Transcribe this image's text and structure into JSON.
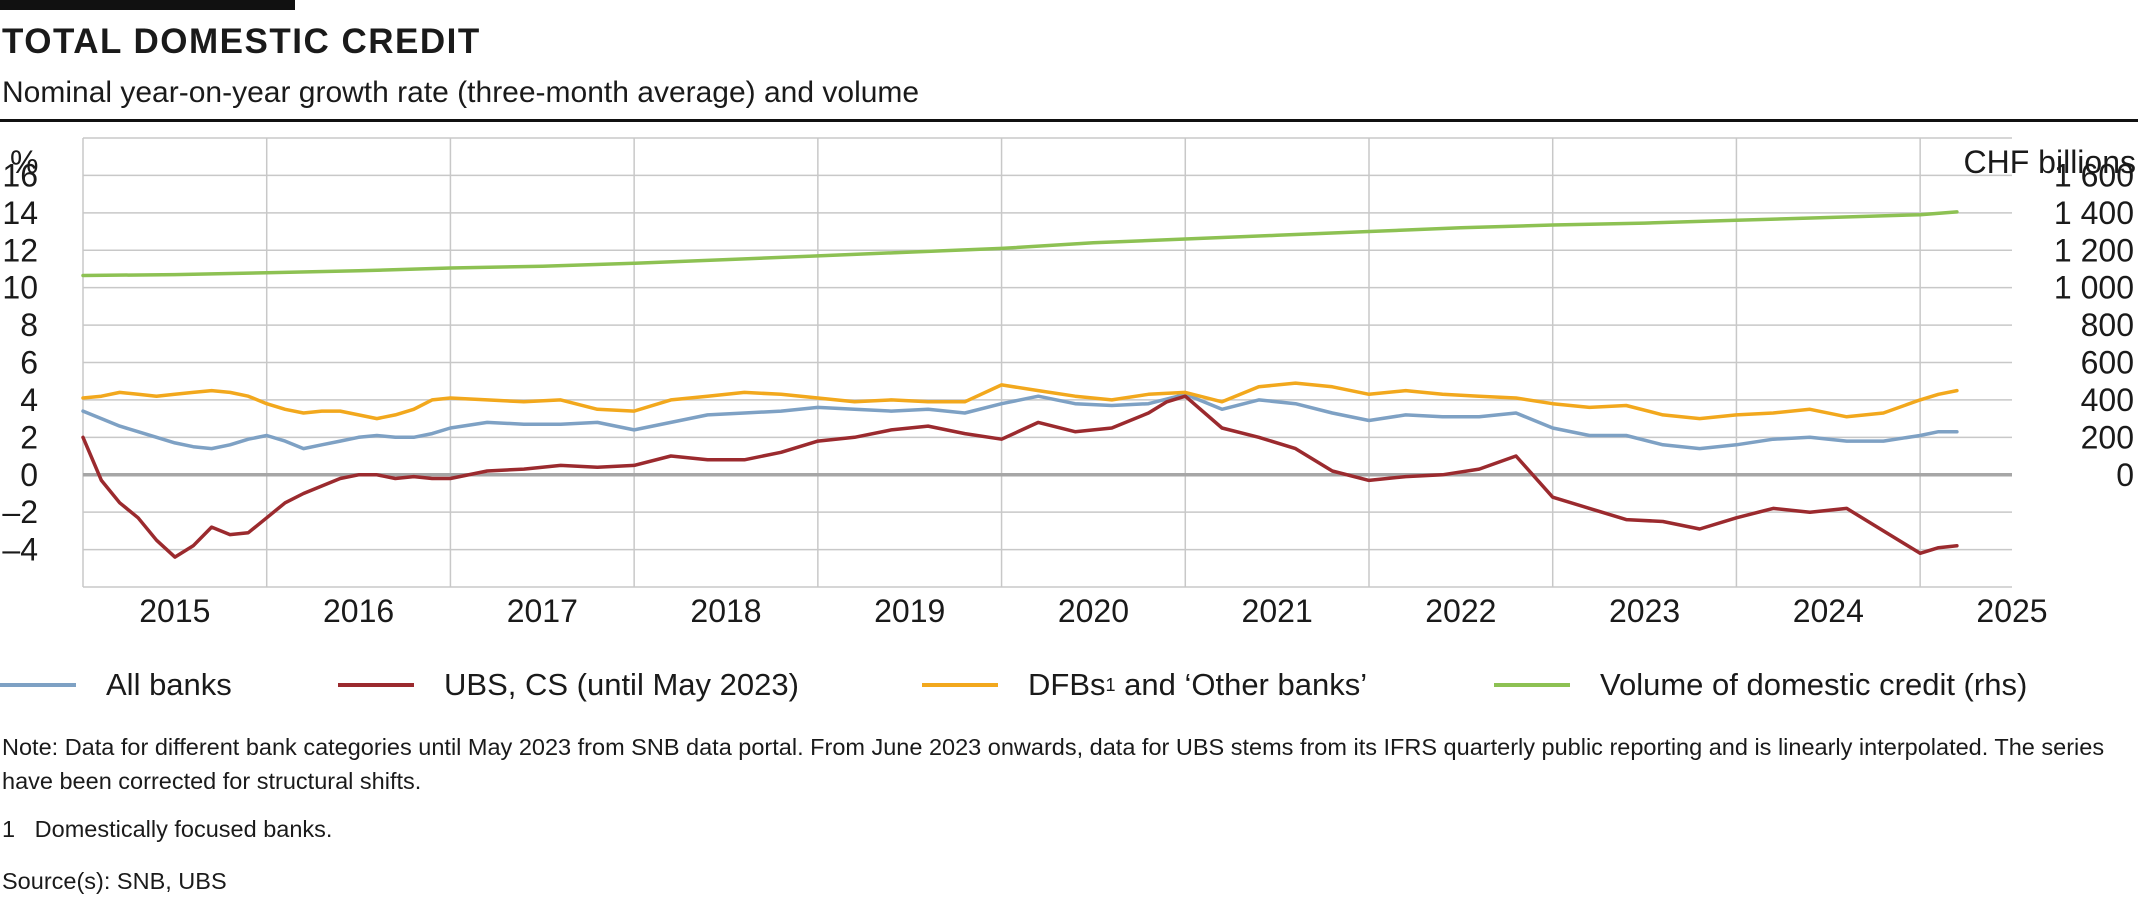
{
  "header": {
    "title": "TOTAL DOMESTIC CREDIT",
    "subtitle": "Nominal year-on-year growth rate (three-month average) and volume"
  },
  "chart_data": {
    "type": "line",
    "left_axis_label": "%",
    "right_axis_label": "CHF billions",
    "left_ticks": [
      "16",
      "14",
      "12",
      "10",
      "8",
      "6",
      "4",
      "2",
      "0",
      "–2",
      "–4"
    ],
    "right_ticks": [
      "1 600",
      "1 400",
      "1 200",
      "1 000",
      "800",
      "600",
      "400",
      "200",
      "0"
    ],
    "ylim_left": [
      -6,
      18
    ],
    "ylim_right": [
      -600,
      1800
    ],
    "x_ticks": [
      "2015",
      "2016",
      "2017",
      "2018",
      "2019",
      "2020",
      "2021",
      "2022",
      "2023",
      "2024",
      "2025"
    ],
    "xlim": [
      2015.0,
      2025.5
    ],
    "grid": true,
    "series": [
      {
        "name": "All banks",
        "color": "#7ea1c4",
        "axis": "left",
        "x": [
          2015.0,
          2015.1,
          2015.2,
          2015.3,
          2015.4,
          2015.5,
          2015.6,
          2015.7,
          2015.8,
          2015.9,
          2016.0,
          2016.1,
          2016.2,
          2016.3,
          2016.4,
          2016.5,
          2016.6,
          2016.7,
          2016.8,
          2016.9,
          2017.0,
          2017.2,
          2017.4,
          2017.6,
          2017.8,
          2018.0,
          2018.2,
          2018.4,
          2018.6,
          2018.8,
          2019.0,
          2019.2,
          2019.4,
          2019.6,
          2019.8,
          2020.0,
          2020.2,
          2020.4,
          2020.6,
          2020.8,
          2021.0,
          2021.2,
          2021.4,
          2021.6,
          2021.8,
          2022.0,
          2022.2,
          2022.4,
          2022.6,
          2022.8,
          2023.0,
          2023.2,
          2023.4,
          2023.6,
          2023.8,
          2024.0,
          2024.2,
          2024.4,
          2024.6,
          2024.8,
          2025.0,
          2025.1,
          2025.2
        ],
        "y": [
          3.4,
          3.0,
          2.6,
          2.3,
          2.0,
          1.7,
          1.5,
          1.4,
          1.6,
          1.9,
          2.1,
          1.8,
          1.4,
          1.6,
          1.8,
          2.0,
          2.1,
          2.0,
          2.0,
          2.2,
          2.5,
          2.8,
          2.7,
          2.7,
          2.8,
          2.4,
          2.8,
          3.2,
          3.3,
          3.4,
          3.6,
          3.5,
          3.4,
          3.5,
          3.3,
          3.8,
          4.2,
          3.8,
          3.7,
          3.8,
          4.3,
          3.5,
          4.0,
          3.8,
          3.3,
          2.9,
          3.2,
          3.1,
          3.1,
          3.3,
          2.5,
          2.1,
          2.1,
          1.6,
          1.4,
          1.6,
          1.9,
          2.0,
          1.8,
          1.8,
          2.1,
          2.3,
          2.3
        ]
      },
      {
        "name": "UBS, CS (until May 2023)",
        "color": "#9b2a2e",
        "axis": "left",
        "x": [
          2015.0,
          2015.1,
          2015.2,
          2015.3,
          2015.4,
          2015.5,
          2015.6,
          2015.7,
          2015.8,
          2015.9,
          2016.0,
          2016.1,
          2016.2,
          2016.3,
          2016.4,
          2016.5,
          2016.6,
          2016.7,
          2016.8,
          2016.9,
          2017.0,
          2017.2,
          2017.4,
          2017.6,
          2017.8,
          2018.0,
          2018.2,
          2018.4,
          2018.6,
          2018.8,
          2019.0,
          2019.2,
          2019.4,
          2019.6,
          2019.8,
          2020.0,
          2020.2,
          2020.4,
          2020.6,
          2020.8,
          2020.9,
          2021.0,
          2021.2,
          2021.4,
          2021.6,
          2021.8,
          2022.0,
          2022.2,
          2022.4,
          2022.6,
          2022.8,
          2023.0,
          2023.2,
          2023.4,
          2023.6,
          2023.8,
          2024.0,
          2024.2,
          2024.4,
          2024.6,
          2024.8,
          2025.0,
          2025.1,
          2025.2
        ],
        "y": [
          2.0,
          -0.3,
          -1.5,
          -2.3,
          -3.5,
          -4.4,
          -3.8,
          -2.8,
          -3.2,
          -3.1,
          -2.3,
          -1.5,
          -1.0,
          -0.6,
          -0.2,
          0.0,
          0.0,
          -0.2,
          -0.1,
          -0.2,
          -0.2,
          0.2,
          0.3,
          0.5,
          0.4,
          0.5,
          1.0,
          0.8,
          0.8,
          1.2,
          1.8,
          2.0,
          2.4,
          2.6,
          2.2,
          1.9,
          2.8,
          2.3,
          2.5,
          3.3,
          3.9,
          4.2,
          2.5,
          2.0,
          1.4,
          0.2,
          -0.3,
          -0.1,
          0.0,
          0.3,
          1.0,
          -1.2,
          -1.8,
          -2.4,
          -2.5,
          -2.9,
          -2.3,
          -1.8,
          -2.0,
          -1.8,
          -3.0,
          -4.2,
          -3.9,
          -3.8
        ]
      },
      {
        "name": "DFBs¹ and ‘Other banks’",
        "color": "#f2a81d",
        "axis": "left",
        "x": [
          2015.0,
          2015.1,
          2015.2,
          2015.3,
          2015.4,
          2015.5,
          2015.6,
          2015.7,
          2015.8,
          2015.9,
          2016.0,
          2016.1,
          2016.2,
          2016.3,
          2016.4,
          2016.5,
          2016.6,
          2016.7,
          2016.8,
          2016.9,
          2017.0,
          2017.2,
          2017.4,
          2017.6,
          2017.8,
          2018.0,
          2018.2,
          2018.4,
          2018.6,
          2018.8,
          2019.0,
          2019.2,
          2019.4,
          2019.6,
          2019.8,
          2020.0,
          2020.2,
          2020.4,
          2020.6,
          2020.8,
          2021.0,
          2021.2,
          2021.4,
          2021.6,
          2021.8,
          2022.0,
          2022.2,
          2022.4,
          2022.6,
          2022.8,
          2023.0,
          2023.2,
          2023.4,
          2023.6,
          2023.8,
          2024.0,
          2024.2,
          2024.4,
          2024.6,
          2024.8,
          2025.0,
          2025.1,
          2025.2
        ],
        "y": [
          4.1,
          4.2,
          4.4,
          4.3,
          4.2,
          4.3,
          4.4,
          4.5,
          4.4,
          4.2,
          3.8,
          3.5,
          3.3,
          3.4,
          3.4,
          3.2,
          3.0,
          3.2,
          3.5,
          4.0,
          4.1,
          4.0,
          3.9,
          4.0,
          3.5,
          3.4,
          4.0,
          4.2,
          4.4,
          4.3,
          4.1,
          3.9,
          4.0,
          3.9,
          3.9,
          4.8,
          4.5,
          4.2,
          4.0,
          4.3,
          4.4,
          3.9,
          4.7,
          4.9,
          4.7,
          4.3,
          4.5,
          4.3,
          4.2,
          4.1,
          3.8,
          3.6,
          3.7,
          3.2,
          3.0,
          3.2,
          3.3,
          3.5,
          3.1,
          3.3,
          4.0,
          4.3,
          4.5
        ]
      },
      {
        "name": "Volume of domestic credit (rhs)",
        "color": "#8dc153",
        "axis": "right",
        "x": [
          2015.0,
          2015.5,
          2016.0,
          2016.5,
          2017.0,
          2017.5,
          2018.0,
          2018.5,
          2019.0,
          2019.5,
          2020.0,
          2020.5,
          2021.0,
          2021.5,
          2022.0,
          2022.5,
          2023.0,
          2023.5,
          2024.0,
          2024.5,
          2025.0,
          2025.2
        ],
        "y": [
          1065,
          1070,
          1080,
          1090,
          1105,
          1115,
          1130,
          1150,
          1170,
          1190,
          1210,
          1240,
          1260,
          1280,
          1300,
          1320,
          1335,
          1345,
          1360,
          1375,
          1390,
          1405
        ]
      }
    ]
  },
  "legend": {
    "items": [
      {
        "label": "All banks",
        "color": "#7ea1c4"
      },
      {
        "label": "UBS, CS (until May 2023)",
        "color": "#9b2a2e"
      },
      {
        "label": "DFBs",
        "sup": "1",
        "suffix": " and ‘Other banks’",
        "color": "#f2a81d"
      },
      {
        "label": "Volume of domestic credit (rhs)",
        "color": "#8dc153"
      }
    ]
  },
  "notes": {
    "note": "Note: Data for different bank categories until May 2023 from SNB data portal. From June 2023 onwards, data for UBS stems from its IFRS quarterly public reporting and is linearly interpolated. The series have been corrected for structural shifts.",
    "footnote": "1   Domestically focused banks.",
    "source": "Source(s): SNB, UBS"
  },
  "colors": {
    "zero_line": "#a6a6a6",
    "grid": "#c8c8c8",
    "text": "#1a1a1a"
  }
}
